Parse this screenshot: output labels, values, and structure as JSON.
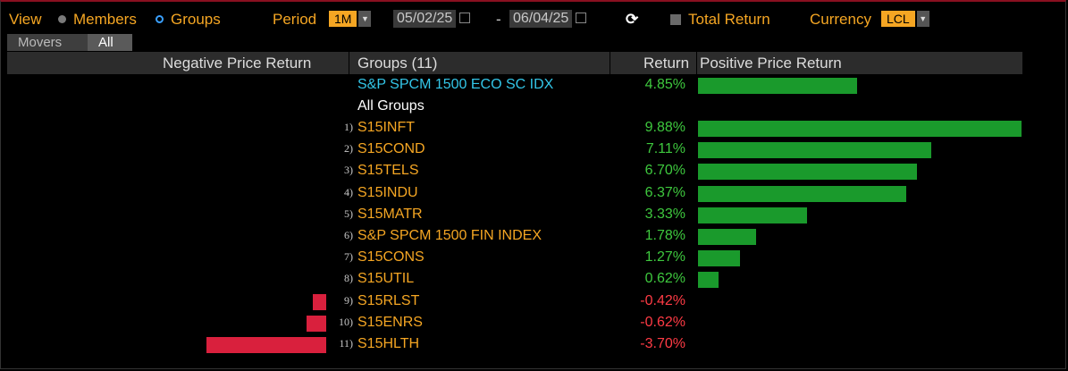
{
  "toolbar": {
    "view_label": "View",
    "members_label": "Members",
    "groups_label": "Groups",
    "period_label": "Period",
    "period_value": "1M",
    "start_date": "05/02/25",
    "date_sep": "-",
    "end_date": "06/04/25",
    "total_return_label": "Total Return",
    "currency_label": "Currency",
    "currency_value": "LCL"
  },
  "tabs": [
    "Movers",
    "All"
  ],
  "table": {
    "headers": {
      "negative": "Negative Price Return",
      "groups": "Groups (11)",
      "return": "Return",
      "positive": "Positive Price Return"
    },
    "index_row": {
      "name": "S&P SPCM 1500 ECO SC IDX",
      "return": "4.85%",
      "value": 4.85
    },
    "all_groups_label": "All Groups",
    "rows": [
      {
        "num": "1)",
        "name": "S15INFT",
        "return": "9.88%",
        "value": 9.88
      },
      {
        "num": "2)",
        "name": "S15COND",
        "return": "7.11%",
        "value": 7.11
      },
      {
        "num": "3)",
        "name": "S15TELS",
        "return": "6.70%",
        "value": 6.7
      },
      {
        "num": "4)",
        "name": "S15INDU",
        "return": "6.37%",
        "value": 6.37
      },
      {
        "num": "5)",
        "name": "S15MATR",
        "return": "3.33%",
        "value": 3.33
      },
      {
        "num": "6)",
        "name": "S&P SPCM 1500 FIN INDEX",
        "return": "1.78%",
        "value": 1.78
      },
      {
        "num": "7)",
        "name": "S15CONS",
        "return": "1.27%",
        "value": 1.27
      },
      {
        "num": "8)",
        "name": "S15UTIL",
        "return": "0.62%",
        "value": 0.62
      },
      {
        "num": "9)",
        "name": "S15RLST",
        "return": "-0.42%",
        "value": -0.42
      },
      {
        "num": "10)",
        "name": "S15ENRS",
        "return": "-0.62%",
        "value": -0.62
      },
      {
        "num": "11)",
        "name": "S15HLTH",
        "return": "-3.70%",
        "value": -3.7
      }
    ]
  },
  "colors": {
    "accent": "#f5a623",
    "positive_text": "#3ec83e",
    "negative_text": "#ff3b45",
    "positive_bar": "#1a9a2c",
    "negative_bar": "#d9203d",
    "index_name": "#33c6e8"
  }
}
